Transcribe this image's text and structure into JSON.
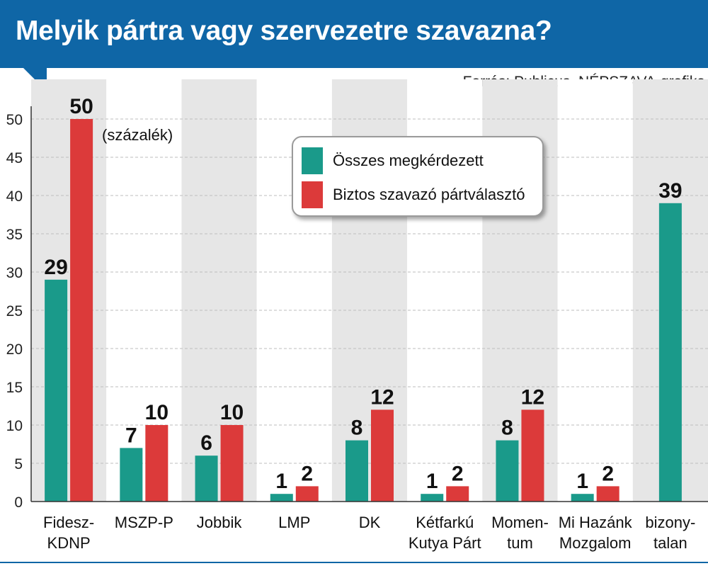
{
  "header": {
    "title": "Melyik pártra vagy szervezetre szavazna?",
    "source": "Forrás: Publicus, NÉPSZAVA-grafika"
  },
  "chart_data": {
    "type": "bar",
    "title": "Melyik pártra vagy szervezetre szavazna?",
    "unit_label": "(százalék)",
    "categories": [
      [
        "Fidesz-",
        "KDNP"
      ],
      [
        "MSZP-P"
      ],
      [
        "Jobbik"
      ],
      [
        "LMP"
      ],
      [
        "DK"
      ],
      [
        "Kétfarkú",
        "Kutya Párt"
      ],
      [
        "Momen-",
        "tum"
      ],
      [
        "Mi Hazánk",
        "Mozgalom"
      ],
      [
        "bizony-",
        "talan"
      ]
    ],
    "series": [
      {
        "name": "Összes megkérdezett",
        "color": "#1a9a8a",
        "values": [
          29,
          7,
          6,
          1,
          8,
          1,
          8,
          1,
          39
        ]
      },
      {
        "name": "Biztos szavazó pártválasztó",
        "color": "#dc3a3a",
        "values": [
          50,
          10,
          10,
          2,
          12,
          2,
          12,
          2,
          null
        ]
      }
    ],
    "yticks": [
      0,
      5,
      10,
      15,
      20,
      25,
      30,
      35,
      40,
      45,
      50
    ],
    "ylim": [
      0,
      50
    ],
    "band_colors": [
      "#e6e6e6",
      "#ffffff"
    ],
    "grid": true,
    "legend_position": "top-center"
  }
}
